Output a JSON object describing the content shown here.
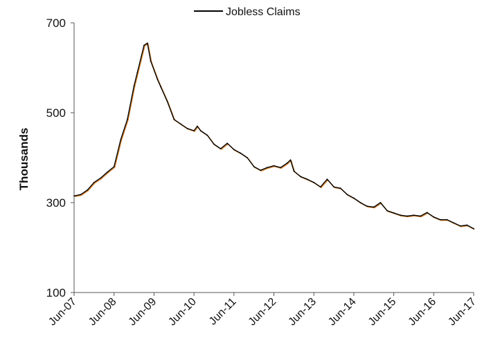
{
  "chart_data": {
    "type": "line",
    "title": "",
    "xlabel": "",
    "ylabel": "Thousands",
    "ylim": [
      100,
      700
    ],
    "yticks": [
      100,
      300,
      500,
      700
    ],
    "x_tick_labels": [
      "Jun-07",
      "Jun-08",
      "Jun-09",
      "Jun-10",
      "Jun-11",
      "Jun-12",
      "Jun-13",
      "Jun-14",
      "Jun-15",
      "Jun-16",
      "Jun-17"
    ],
    "grid": false,
    "legend_position": "top-center",
    "series": [
      {
        "name": "Jobless Claims",
        "color": "#000000",
        "points": [
          [
            "Jun-07",
            315
          ],
          [
            "Aug-07",
            318
          ],
          [
            "Oct-07",
            328
          ],
          [
            "Dec-07",
            345
          ],
          [
            "Feb-08",
            355
          ],
          [
            "Apr-08",
            368
          ],
          [
            "Jun-08",
            380
          ],
          [
            "Aug-08",
            440
          ],
          [
            "Oct-08",
            485
          ],
          [
            "Dec-08",
            560
          ],
          [
            "Jan-09",
            590
          ],
          [
            "Mar-09",
            650
          ],
          [
            "Apr-09",
            655
          ],
          [
            "May-09",
            615
          ],
          [
            "Jul-09",
            575
          ],
          [
            "Aug-09",
            558
          ],
          [
            "Oct-09",
            525
          ],
          [
            "Dec-09",
            485
          ],
          [
            "Feb-10",
            475
          ],
          [
            "Apr-10",
            465
          ],
          [
            "Jun-10",
            460
          ],
          [
            "Jul-10",
            470
          ],
          [
            "Aug-10",
            460
          ],
          [
            "Oct-10",
            450
          ],
          [
            "Dec-10",
            430
          ],
          [
            "Feb-11",
            420
          ],
          [
            "Apr-11",
            432
          ],
          [
            "Jun-11",
            418
          ],
          [
            "Aug-11",
            410
          ],
          [
            "Oct-11",
            400
          ],
          [
            "Dec-11",
            380
          ],
          [
            "Feb-12",
            372
          ],
          [
            "Apr-12",
            378
          ],
          [
            "Jun-12",
            382
          ],
          [
            "Aug-12",
            378
          ],
          [
            "Oct-12",
            388
          ],
          [
            "Nov-12",
            395
          ],
          [
            "Dec-12",
            370
          ],
          [
            "Feb-13",
            358
          ],
          [
            "Apr-13",
            352
          ],
          [
            "Jun-13",
            345
          ],
          [
            "Aug-13",
            335
          ],
          [
            "Oct-13",
            352
          ],
          [
            "Dec-13",
            335
          ],
          [
            "Feb-14",
            332
          ],
          [
            "Apr-14",
            318
          ],
          [
            "Jun-14",
            310
          ],
          [
            "Aug-14",
            300
          ],
          [
            "Oct-14",
            292
          ],
          [
            "Dec-14",
            290
          ],
          [
            "Feb-15",
            300
          ],
          [
            "Apr-15",
            282
          ],
          [
            "Jun-15",
            277
          ],
          [
            "Aug-15",
            272
          ],
          [
            "Oct-15",
            270
          ],
          [
            "Dec-15",
            272
          ],
          [
            "Feb-16",
            270
          ],
          [
            "Apr-16",
            278
          ],
          [
            "Jun-16",
            268
          ],
          [
            "Aug-16",
            262
          ],
          [
            "Oct-16",
            262
          ],
          [
            "Dec-16",
            255
          ],
          [
            "Feb-17",
            248
          ],
          [
            "Apr-17",
            250
          ],
          [
            "Jun-17",
            242
          ]
        ]
      }
    ]
  }
}
